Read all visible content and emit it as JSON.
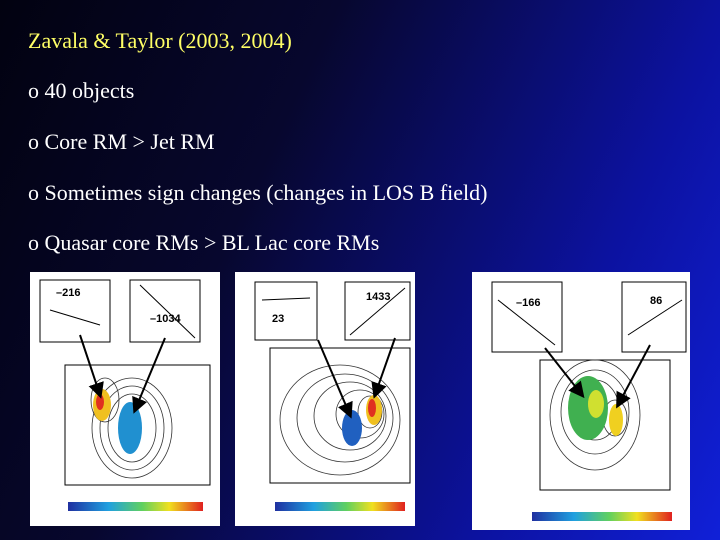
{
  "header": {
    "title": "Zavala & Taylor (2003, 2004)"
  },
  "bullets": [
    "o 40 objects",
    "o Core RM > Jet RM",
    "o Sometimes sign changes (changes in LOS B field)",
    "o Quasar core RMs > BL Lac core RMs"
  ],
  "figures": [
    {
      "labels": [
        "–216",
        "–1034"
      ]
    },
    {
      "labels": [
        "23",
        "1433"
      ]
    },
    {
      "labels": [
        "–166",
        "86"
      ]
    }
  ]
}
